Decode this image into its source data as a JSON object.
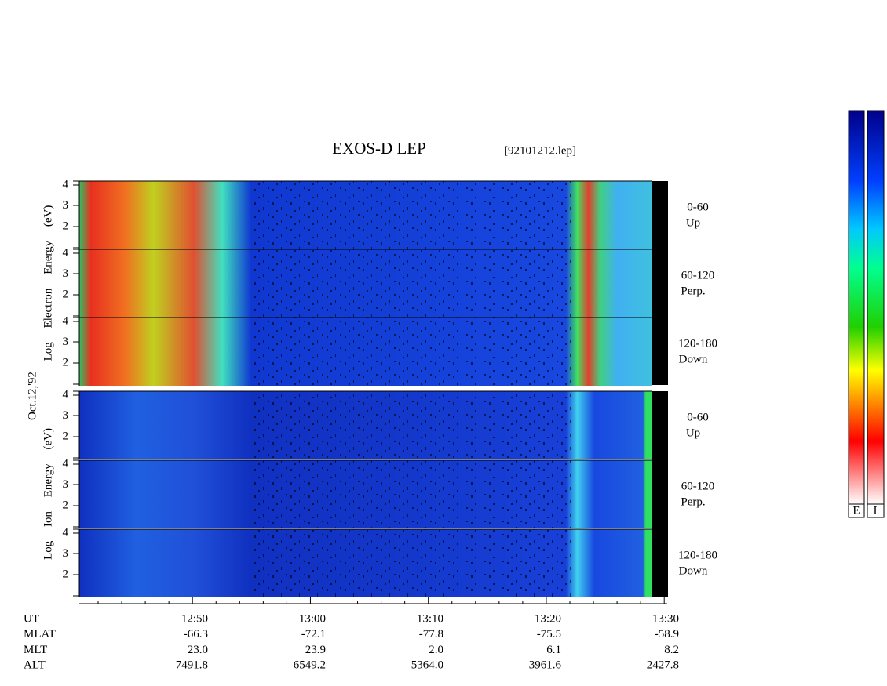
{
  "header": {
    "title": "EXOS-D LEP",
    "file": "[92101212.lep]"
  },
  "date": "Oct.12,'92",
  "axis_labels": {
    "electron": "Log Electron Energy (eV)",
    "ion": "Log Ion Energy (eV)"
  },
  "panels": [
    {
      "group": "electron",
      "yticks": [
        "4",
        "3",
        "2"
      ],
      "channel": [
        "0-60",
        "Up"
      ]
    },
    {
      "group": "electron",
      "yticks": [
        "4",
        "3",
        "2"
      ],
      "channel": [
        "60-120",
        "Perp."
      ]
    },
    {
      "group": "electron",
      "yticks": [
        "4",
        "3",
        "2"
      ],
      "channel": [
        "120-180",
        "Down"
      ]
    },
    {
      "group": "ion",
      "yticks": [
        "4",
        "3",
        "2"
      ],
      "channel": [
        "0-60",
        "Up"
      ]
    },
    {
      "group": "ion",
      "yticks": [
        "4",
        "3",
        "2"
      ],
      "channel": [
        "60-120",
        "Perp."
      ]
    },
    {
      "group": "ion",
      "yticks": [
        "4",
        "3",
        "2"
      ],
      "channel": [
        "120-180",
        "Down"
      ]
    }
  ],
  "table": {
    "rows": [
      [
        "UT",
        "12:50",
        "13:00",
        "13:10",
        "13:20",
        "13:30"
      ],
      [
        "MLAT",
        "-66.3",
        "-72.1",
        "-77.8",
        "-75.5",
        "-58.9"
      ],
      [
        "MLT",
        "23.0",
        "23.9",
        "2.0",
        "6.1",
        "8.2"
      ],
      [
        "ALT",
        "7491.8",
        "6549.2",
        "5364.0",
        "3961.6",
        "2427.8"
      ]
    ]
  },
  "colorbars": [
    "E",
    "I"
  ]
}
